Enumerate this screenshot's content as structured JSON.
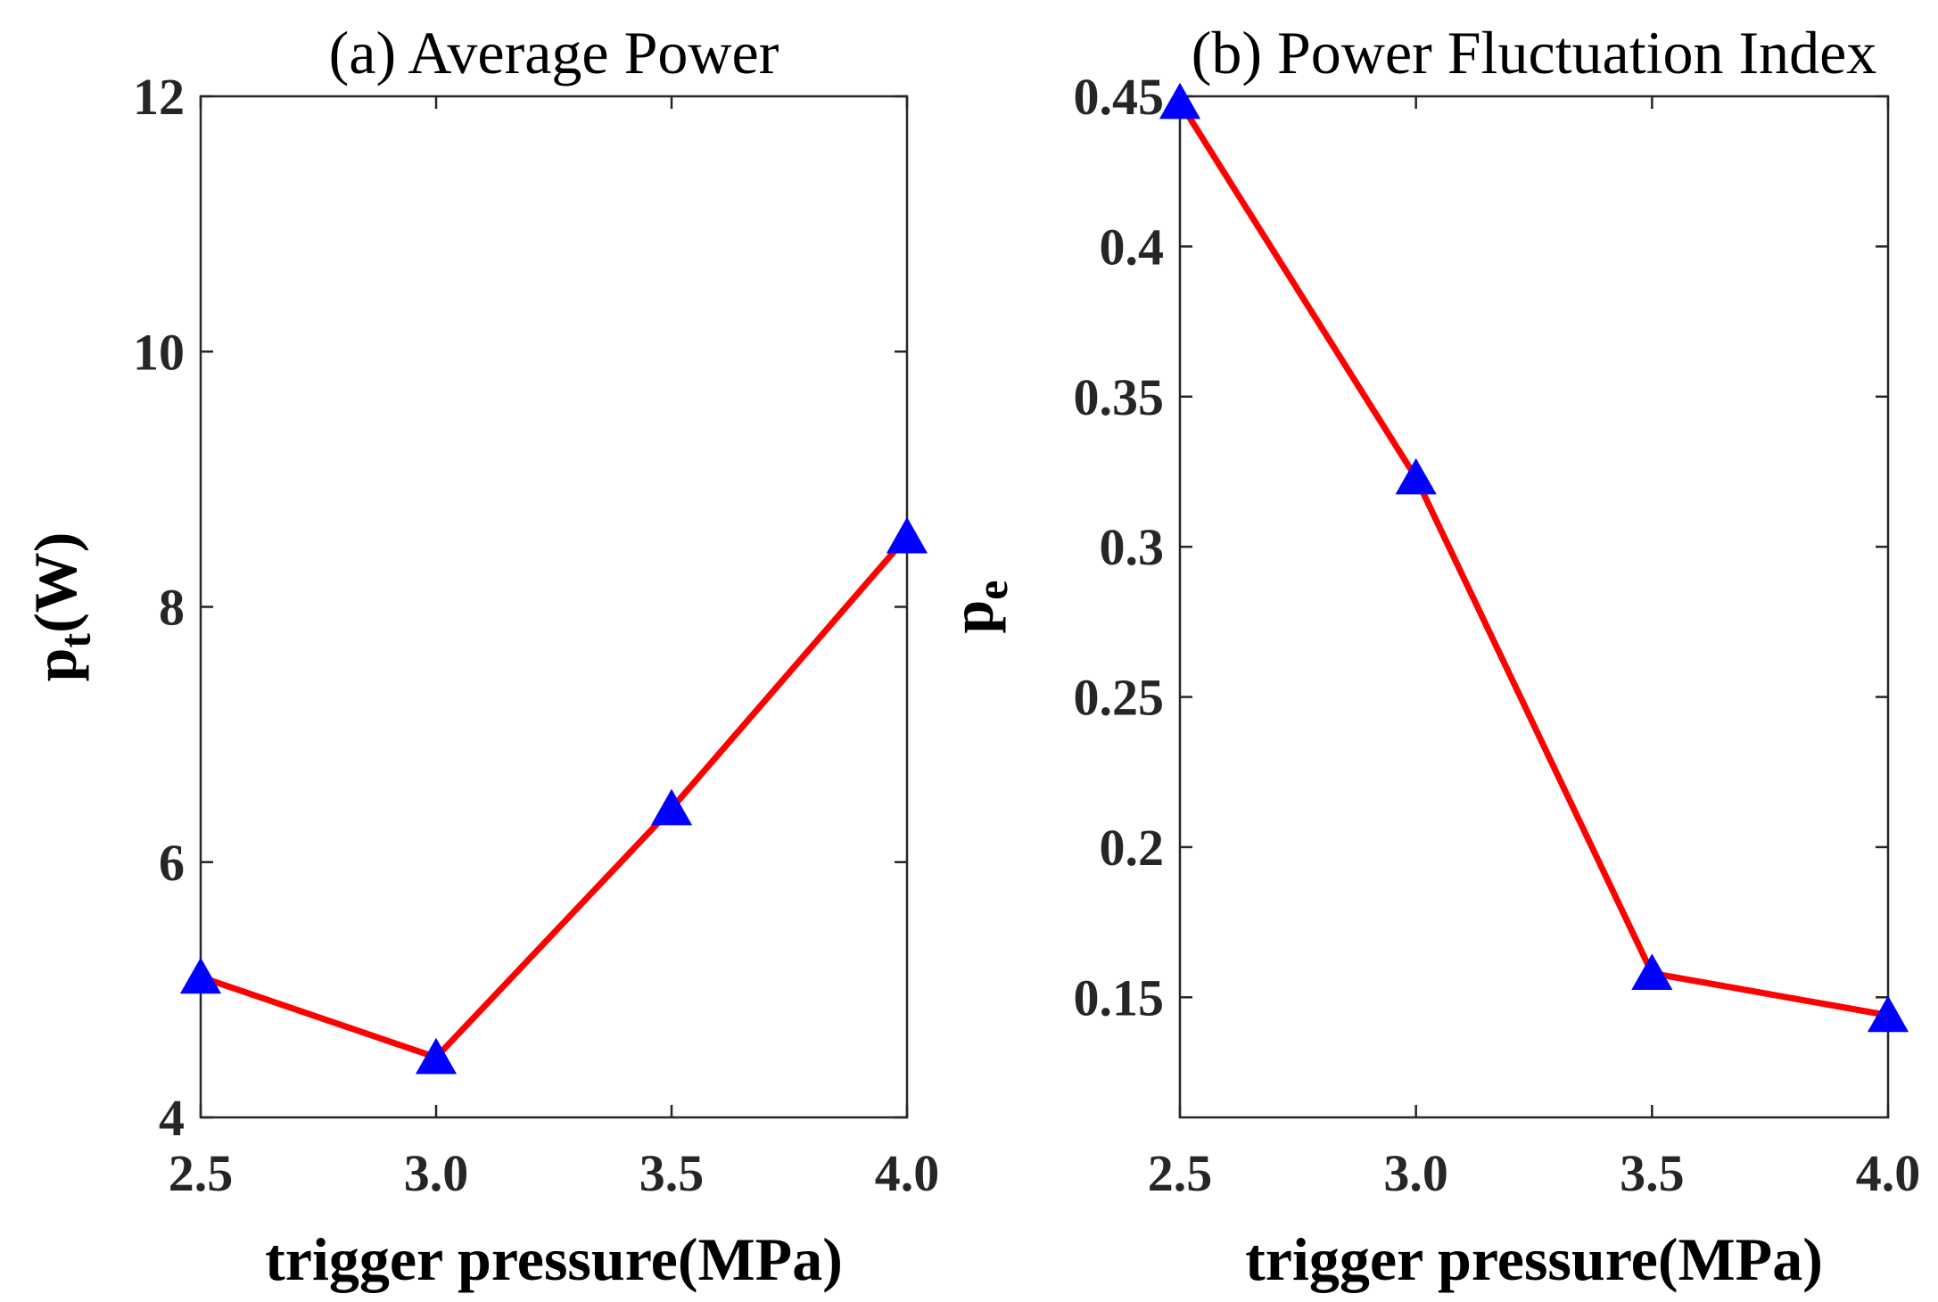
{
  "colors": {
    "line": "#ff0000",
    "marker": "#0000ff",
    "axis": "#262626"
  },
  "chart_data": [
    {
      "type": "line",
      "title": "(a) Average Power",
      "xlabel": "trigger pressure(MPa)",
      "ylabel_main": "p",
      "ylabel_sub": "t",
      "ylabel_tail": "(W)",
      "x": [
        2.5,
        3.0,
        3.5,
        4.0
      ],
      "y": [
        5.1,
        4.47,
        6.42,
        8.55
      ],
      "xlim": [
        2.5,
        4.0
      ],
      "ylim": [
        4,
        12
      ],
      "xticks": [
        2.5,
        3.0,
        3.5,
        4.0
      ],
      "xtick_labels": [
        "2.5",
        "3.0",
        "3.5",
        "4.0"
      ],
      "yticks": [
        4,
        6,
        8,
        10,
        12
      ],
      "ytick_labels": [
        "4",
        "6",
        "8",
        "10",
        "12"
      ],
      "marker": "triangle",
      "grid": false
    },
    {
      "type": "line",
      "title": "(b) Power Fluctuation Index",
      "xlabel": "trigger pressure(MPa)",
      "ylabel_main": "p",
      "ylabel_sub": "e",
      "ylabel_tail": "",
      "x": [
        2.5,
        3.0,
        3.5,
        4.0
      ],
      "y": [
        0.448,
        0.323,
        0.158,
        0.144
      ],
      "xlim": [
        2.5,
        4.0
      ],
      "ylim": [
        0.11,
        0.45
      ],
      "xticks": [
        2.5,
        3.0,
        3.5,
        4.0
      ],
      "xtick_labels": [
        "2.5",
        "3.0",
        "3.5",
        "4.0"
      ],
      "yticks": [
        0.15,
        0.2,
        0.25,
        0.3,
        0.35,
        0.4,
        0.45
      ],
      "ytick_labels": [
        "0.15",
        "0.2",
        "0.25",
        "0.3",
        "0.35",
        "0.4",
        "0.45"
      ],
      "marker": "triangle",
      "grid": false
    }
  ]
}
